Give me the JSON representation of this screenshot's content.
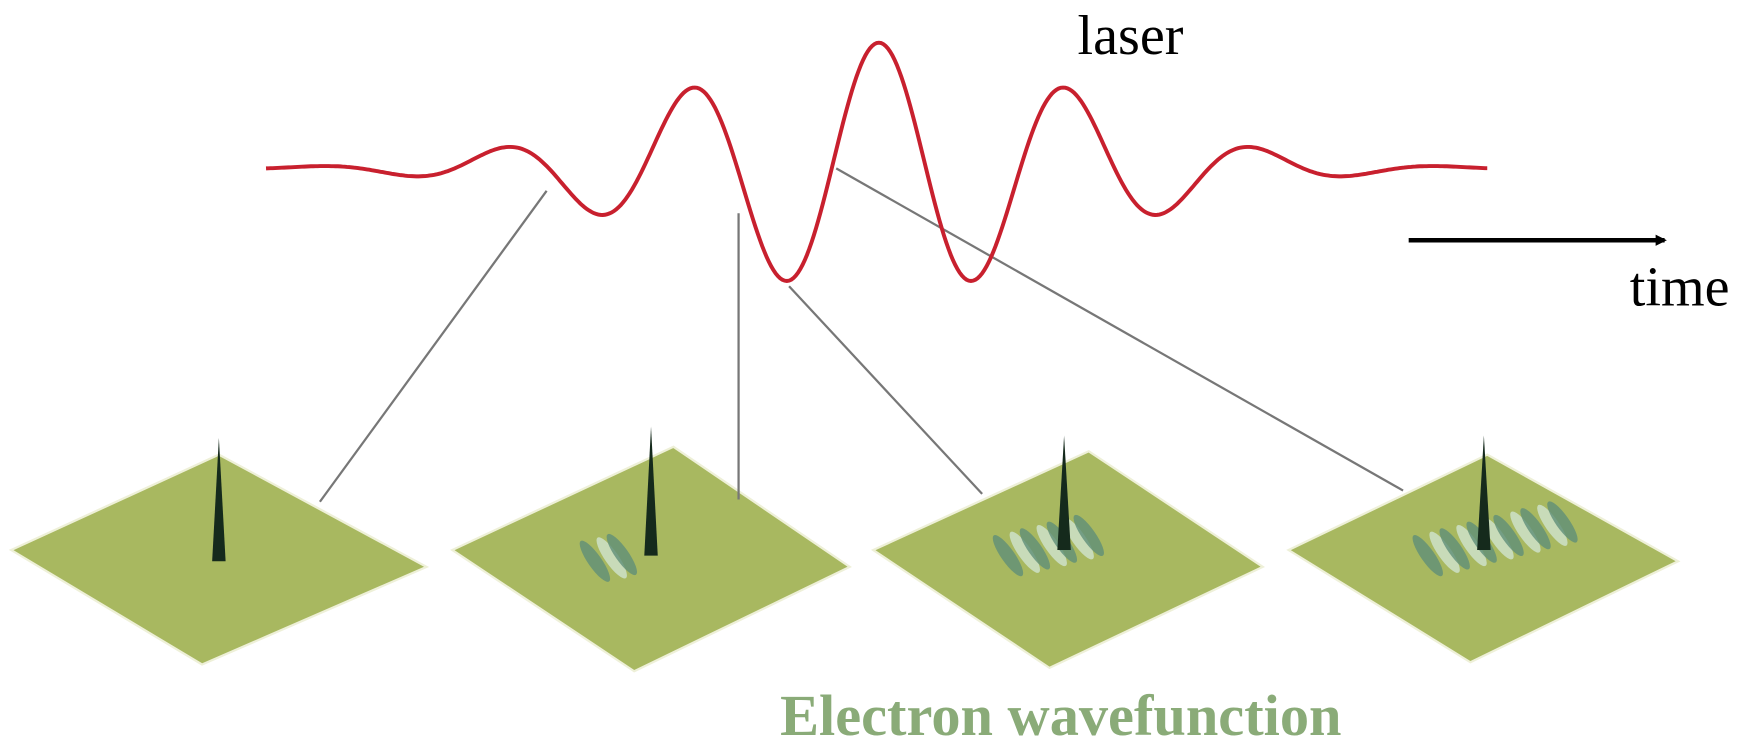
{
  "labels": {
    "laser": "laser",
    "time": "time",
    "caption": "Electron wavefunction"
  }
}
